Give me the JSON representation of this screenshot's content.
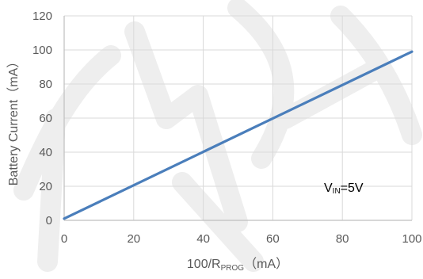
{
  "chart_data": {
    "type": "line",
    "xlabel_main": "100/R",
    "xlabel_sub": "PROG",
    "xlabel_unit": "（mA）",
    "ylabel": "Battery Current（mA）",
    "xlim": [
      0,
      100
    ],
    "ylim": [
      0,
      120
    ],
    "xticks": [
      0,
      20,
      40,
      60,
      80,
      100
    ],
    "yticks": [
      0,
      20,
      40,
      60,
      80,
      100,
      120
    ],
    "grid": true,
    "legend": "none",
    "line_color": "#4a7ebb",
    "series": [
      {
        "x": [
          0,
          100
        ],
        "y": [
          1,
          99
        ]
      }
    ],
    "annotation": {
      "main": "V",
      "sub": "IN",
      "rest": "=5V"
    }
  }
}
